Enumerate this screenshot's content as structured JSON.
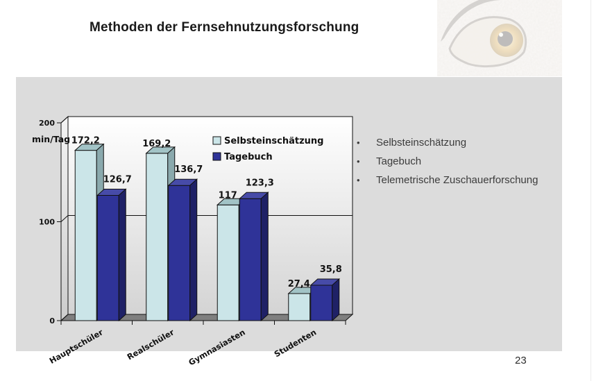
{
  "slide": {
    "title": "Methoden der Fernsehnutzungsforschung",
    "page_number": "23"
  },
  "bullets": {
    "glyph": "•",
    "items": [
      "Selbsteinschätzung",
      "Tagebuch",
      "Telemetrische Zuschauerforschung"
    ]
  },
  "chart_data": {
    "type": "bar",
    "style": "3d-column",
    "title": "",
    "ylabel": "min/Tag",
    "ylim": [
      0,
      200
    ],
    "yticks": [
      0,
      100,
      200
    ],
    "grid": "horizontal-at-100",
    "legend_position": "inside-top",
    "categories": [
      "Hauptschüler",
      "Realschüler",
      "Gymnasiasten",
      "Studenten"
    ],
    "series": [
      {
        "name": "Selbsteinschätzung",
        "values": [
          172.2,
          169.2,
          117,
          27.4
        ],
        "value_labels": [
          "172,2",
          "169,2",
          "117",
          "27,4"
        ],
        "color": "#cbe5e8",
        "color_top": "#a2c3c6",
        "color_side": "#8aa9ad"
      },
      {
        "name": "Tagebuch",
        "values": [
          126.7,
          136.7,
          123.3,
          35.8
        ],
        "value_labels": [
          "126,7",
          "136,7",
          "123,3",
          "35,8"
        ],
        "color": "#2f3398",
        "color_top": "#474ba8",
        "color_side": "#1f2166"
      }
    ],
    "colors": {
      "panel_background": "#dcdcdc",
      "wall_gradient_top": "#ffffff",
      "wall_gradient_bottom": "#d4d4d4",
      "floor": "#7f7f7f",
      "axis": "#111111",
      "label_text": "#111111"
    }
  }
}
